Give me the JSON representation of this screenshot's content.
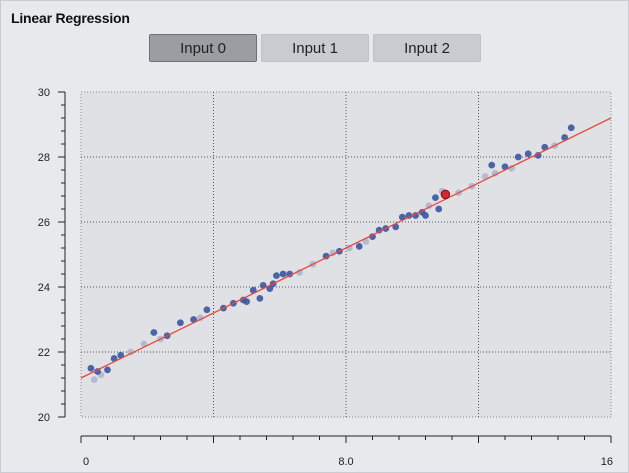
{
  "header": {
    "title": "Linear Regression",
    "tabs": [
      {
        "label": "Input 0",
        "active": true
      },
      {
        "label": "Input 1",
        "active": false
      },
      {
        "label": "Input 2",
        "active": false
      }
    ]
  },
  "colors": {
    "plot_bg": "#dfe1e4",
    "point_dark": "#3a58a0",
    "point_light": "#aab4cc",
    "fit_line": "#e8473d",
    "highlight_point": "#d42a2a"
  },
  "chart_data": {
    "type": "scatter",
    "title": "Linear Regression",
    "xlim": [
      0,
      16
    ],
    "ylim": [
      20,
      30
    ],
    "x_tick_labels": [
      {
        "value": 0,
        "label": "0"
      },
      {
        "value": 8,
        "label": "8.0"
      },
      {
        "value": 16,
        "label": "16"
      }
    ],
    "y_tick_labels": [
      {
        "value": 20,
        "label": "20"
      },
      {
        "value": 22,
        "label": "22"
      },
      {
        "value": 24,
        "label": "24"
      },
      {
        "value": 26,
        "label": "26"
      },
      {
        "value": 28,
        "label": "28"
      },
      {
        "value": 30,
        "label": "30"
      }
    ],
    "grid": true,
    "fit_line": {
      "x": [
        0,
        16
      ],
      "y": [
        21.2,
        29.2
      ]
    },
    "highlight": {
      "x": 11.0,
      "y": 26.85
    },
    "points_dark": [
      [
        0.3,
        21.5
      ],
      [
        0.5,
        21.4
      ],
      [
        0.8,
        21.45
      ],
      [
        1.0,
        21.8
      ],
      [
        1.2,
        21.9
      ],
      [
        2.2,
        22.6
      ],
      [
        2.6,
        22.5
      ],
      [
        3.0,
        22.9
      ],
      [
        3.4,
        23.0
      ],
      [
        3.8,
        23.3
      ],
      [
        4.3,
        23.35
      ],
      [
        4.6,
        23.5
      ],
      [
        4.9,
        23.6
      ],
      [
        5.0,
        23.55
      ],
      [
        5.2,
        23.9
      ],
      [
        5.4,
        23.65
      ],
      [
        5.5,
        24.05
      ],
      [
        5.7,
        23.95
      ],
      [
        5.8,
        24.1
      ],
      [
        5.9,
        24.35
      ],
      [
        6.1,
        24.4
      ],
      [
        6.3,
        24.4
      ],
      [
        7.4,
        24.95
      ],
      [
        7.8,
        25.1
      ],
      [
        8.4,
        25.25
      ],
      [
        8.8,
        25.55
      ],
      [
        9.0,
        25.75
      ],
      [
        9.2,
        25.8
      ],
      [
        9.5,
        25.85
      ],
      [
        9.7,
        26.15
      ],
      [
        9.9,
        26.2
      ],
      [
        10.1,
        26.2
      ],
      [
        10.3,
        26.3
      ],
      [
        10.4,
        26.2
      ],
      [
        10.7,
        26.75
      ],
      [
        10.8,
        26.4
      ],
      [
        11.0,
        26.85
      ],
      [
        12.4,
        27.75
      ],
      [
        12.8,
        27.7
      ],
      [
        13.2,
        28.0
      ],
      [
        13.5,
        28.1
      ],
      [
        13.8,
        28.05
      ],
      [
        14.0,
        28.3
      ],
      [
        14.6,
        28.6
      ],
      [
        14.8,
        28.9
      ]
    ],
    "points_light": [
      [
        0.4,
        21.15
      ],
      [
        0.6,
        21.3
      ],
      [
        1.5,
        22.0
      ],
      [
        1.9,
        22.25
      ],
      [
        2.4,
        22.4
      ],
      [
        3.6,
        23.05
      ],
      [
        6.6,
        24.45
      ],
      [
        7.0,
        24.7
      ],
      [
        7.6,
        25.05
      ],
      [
        8.1,
        25.2
      ],
      [
        8.6,
        25.4
      ],
      [
        10.5,
        26.5
      ],
      [
        10.9,
        26.95
      ],
      [
        11.4,
        26.9
      ],
      [
        11.8,
        27.1
      ],
      [
        12.2,
        27.4
      ],
      [
        12.5,
        27.5
      ],
      [
        13.0,
        27.65
      ],
      [
        14.3,
        28.35
      ]
    ]
  }
}
